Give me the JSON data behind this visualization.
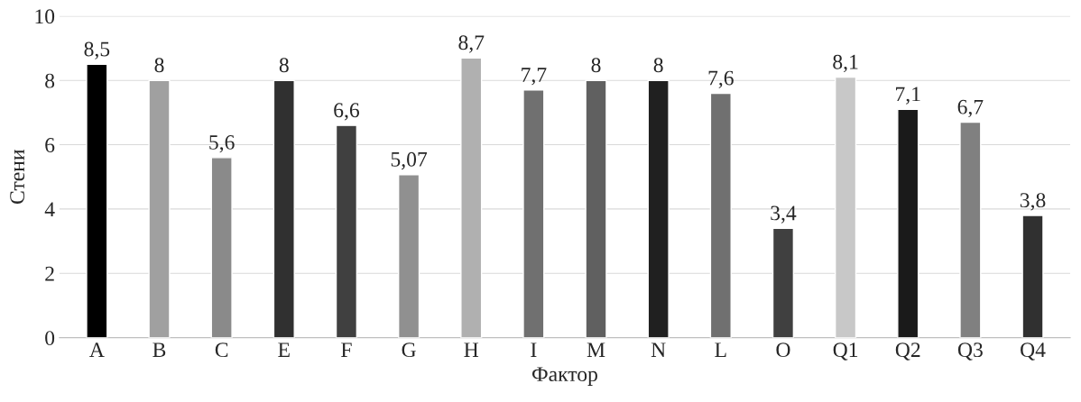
{
  "chart_data": {
    "type": "bar",
    "xlabel": "Фактор",
    "ylabel": "Стени",
    "categories": [
      "A",
      "B",
      "C",
      "E",
      "F",
      "G",
      "H",
      "I",
      "M",
      "N",
      "L",
      "O",
      "Q1",
      "Q2",
      "Q3",
      "Q4"
    ],
    "values": [
      8.5,
      8,
      5.6,
      8,
      6.6,
      5.07,
      8.7,
      7.7,
      8,
      8,
      7.6,
      3.4,
      8.1,
      7.1,
      6.7,
      3.8
    ],
    "value_labels": [
      "8,5",
      "8",
      "5,6",
      "8",
      "6,6",
      "5,07",
      "8,7",
      "7,7",
      "8",
      "8",
      "7,6",
      "3,4",
      "8,1",
      "7,1",
      "6,7",
      "3,8"
    ],
    "colors": [
      "#000000",
      "#a0a0a0",
      "#8a8a8a",
      "#303030",
      "#404040",
      "#909090",
      "#b0b0b0",
      "#707070",
      "#606060",
      "#202020",
      "#707070",
      "#404040",
      "#c8c8c8",
      "#1a1a1a",
      "#808080",
      "#303030"
    ],
    "ylim": [
      0,
      10
    ],
    "yticks": [
      0,
      2,
      4,
      6,
      8,
      10
    ],
    "grid": "y"
  }
}
